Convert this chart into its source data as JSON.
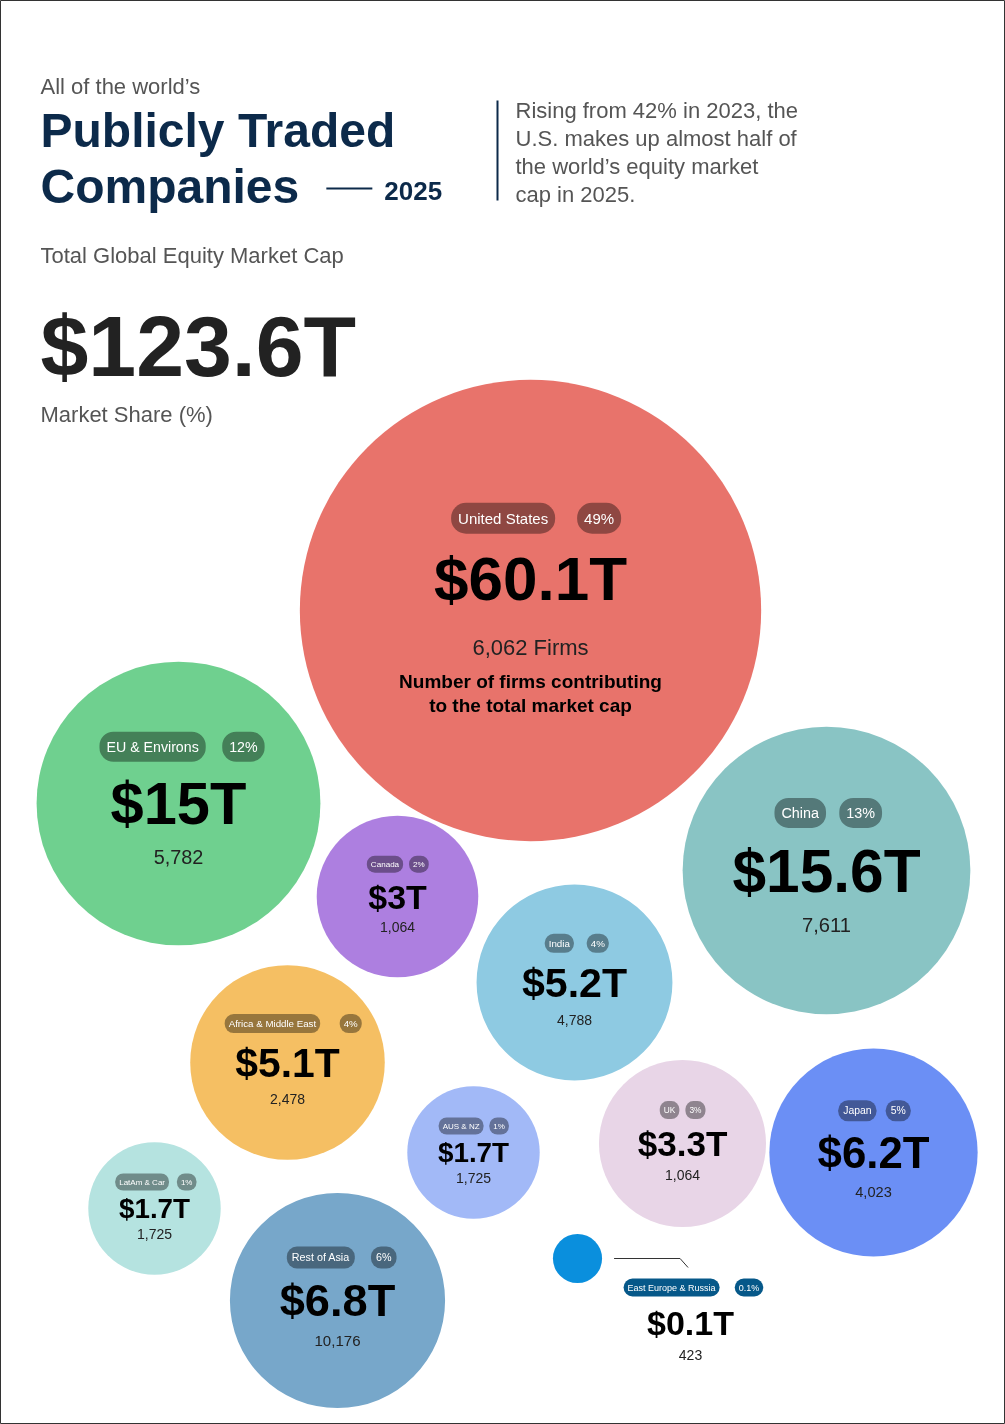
{
  "chart_data": {
    "type": "other",
    "subtitle": "All of the world’s",
    "title": "Publicly Traded Companies",
    "categories": [
      "United States",
      "China",
      "EU & Environs",
      "Rest of Asia",
      "Japan",
      "India",
      "Africa & Middle East",
      "UK",
      "Canada",
      "LatAm & Car",
      "AUS & NZ",
      "East Europe & Russia"
    ],
    "series": [
      {
        "colors": [
          "#e8736b",
          "#89c4c4",
          "#6fd08f",
          "#77a7ca",
          "#6b8ff5",
          "#8ecae2",
          "#f5bf63",
          "#e8d5e7",
          "#ad7fe0",
          "#b5e3e0",
          "#a2b9f7",
          "#0a8fdd"
        ],
        "values": [
          60.1,
          15.6,
          15,
          6.8,
          6.2,
          5.2,
          5.1,
          3.3,
          3,
          1.7,
          1.7,
          0.1
        ],
        "value_labels": [
          "$60.1T",
          "$15.6T",
          "$15T",
          "$6.8T",
          "$6.2T",
          "$5.2T",
          "$5.1T",
          "$3.3T",
          "$3T",
          "$1.7T",
          "$1.7T",
          "$0.1T"
        ]
      }
    ],
    "annotations": [
      "2025",
      "Rising from 42% in 2023, the U.S. makes up almost half of the world’s equity market cap in 2025.",
      "Total Global Equity Market Cap",
      "$123.6T",
      "Market Share (%)",
      {
        "text": "49%",
        "x": "United States"
      },
      {
        "text": "6,062 Firms",
        "x": "United States"
      },
      {
        "text": "Number of firms contributing to the total market cap",
        "x": "United States"
      },
      {
        "text": "13%",
        "x": "China"
      },
      {
        "text": "7,611",
        "x": "China"
      },
      {
        "text": "12%",
        "x": "EU & Environs"
      },
      {
        "text": "5,782",
        "x": "EU & Environs"
      },
      {
        "text": "6%",
        "x": "Rest of Asia"
      },
      {
        "text": "10,176",
        "x": "Rest of Asia"
      },
      {
        "text": "5%",
        "x": "Japan"
      },
      {
        "text": "4,023",
        "x": "Japan"
      },
      {
        "text": "4%",
        "x": "India"
      },
      {
        "text": "4,788",
        "x": "India"
      },
      {
        "text": "4%",
        "x": "Africa & Middle East"
      },
      {
        "text": "2,478",
        "x": "Africa & Middle East"
      },
      {
        "text": "3%",
        "x": "UK"
      },
      {
        "text": "1,064",
        "x": "UK"
      },
      {
        "text": "2%",
        "x": "Canada"
      },
      {
        "text": "1,064",
        "x": "Canada"
      },
      {
        "text": "1%",
        "x": "LatAm & Car"
      },
      {
        "text": "1,725",
        "x": "LatAm & Car"
      },
      {
        "text": "1%",
        "x": "AUS & NZ"
      },
      {
        "text": "1,725",
        "x": "AUS & NZ"
      },
      {
        "text": "0.1%",
        "x": "East Europe & Russia"
      },
      {
        "text": "423",
        "x": "East Europe & Russia"
      }
    ]
  }
}
